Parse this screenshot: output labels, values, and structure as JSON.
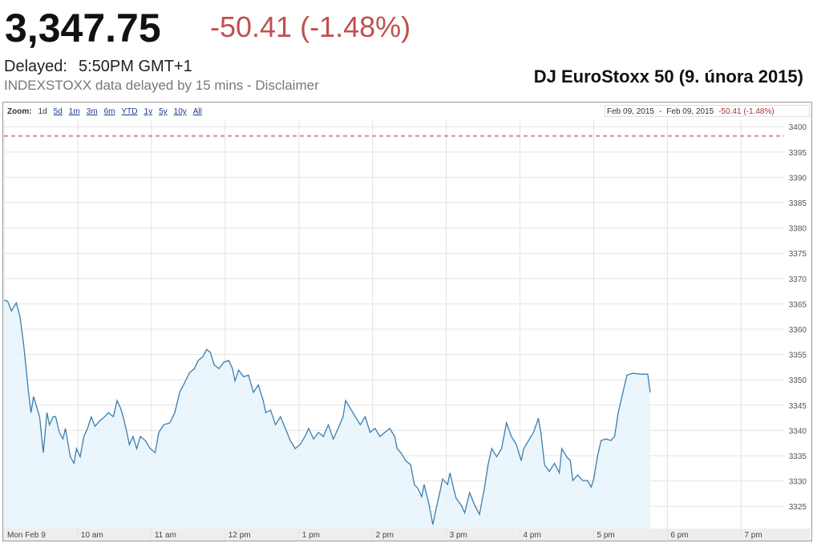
{
  "header": {
    "price": "3,347.75",
    "change": "-50.41 (-1.48%)",
    "delayed_label": "Delayed:",
    "time": "5:50PM GMT+1",
    "source": "INDEXSTOXX data delayed by 15 mins - Disclaimer"
  },
  "chart_data": {
    "type": "line",
    "title": "DJ EuroStoxx 50 (9. února 2015)",
    "zoom_label": "Zoom:",
    "zoom_options": [
      "1d",
      "5d",
      "1m",
      "3m",
      "6m",
      "YTD",
      "1y",
      "5y",
      "10y",
      "All"
    ],
    "range_start": "Feb 09, 2015",
    "range_separator": "-",
    "range_end": "Feb 09, 2015",
    "range_change": "-50.41 (-1.48%)",
    "x": [
      0,
      3,
      6,
      10,
      13,
      16,
      20,
      22,
      24,
      27,
      29,
      32,
      35,
      37,
      40,
      42,
      45,
      48,
      50,
      54,
      57,
      59,
      62,
      65,
      68,
      71,
      74,
      78,
      82,
      85,
      89,
      92,
      95,
      97,
      100,
      102,
      105,
      108,
      111,
      115,
      119,
      123,
      126,
      130,
      135,
      139,
      143,
      147,
      151,
      155,
      158,
      162,
      165,
      168,
      171,
      175,
      179,
      183,
      186,
      188,
      191,
      195,
      199,
      203,
      207,
      211,
      213,
      217,
      221,
      225,
      229,
      233,
      237,
      241,
      245,
      248,
      252,
      256,
      260,
      264,
      268,
      272,
      276,
      278,
      282,
      286,
      290,
      294,
      298,
      302,
      306,
      310,
      314,
      318,
      320,
      323,
      327,
      331,
      334,
      337,
      340,
      342,
      346,
      349,
      351,
      354,
      357,
      361,
      363,
      366,
      368,
      372,
      375,
      379,
      383,
      387,
      391,
      394,
      397,
      401,
      405,
      409,
      413,
      417,
      421,
      423,
      427,
      431,
      435,
      437,
      440,
      444,
      448,
      452,
      454,
      458,
      461,
      463,
      467,
      471,
      475,
      478,
      480,
      483,
      486,
      490,
      494,
      497,
      500,
      503,
      507,
      512,
      518,
      524,
      526
    ],
    "series": [
      {
        "color": "#3a7fae",
        "values": [
          3365.7,
          3365.5,
          3363.6,
          3365.2,
          3362.5,
          3357,
          3347.5,
          3343.5,
          3346.7,
          3344.3,
          3342.7,
          3335.6,
          3343.5,
          3341.1,
          3342.7,
          3342.7,
          3339.6,
          3338.3,
          3340.4,
          3334.8,
          3333.5,
          3336.4,
          3334.8,
          3338.8,
          3340.4,
          3342.7,
          3340.8,
          3341.9,
          3342.7,
          3343.5,
          3342.7,
          3345.9,
          3344.3,
          3342.7,
          3339.6,
          3337.2,
          3338.8,
          3336.4,
          3338.8,
          3338,
          3336.4,
          3335.6,
          3339.6,
          3341.1,
          3341.5,
          3343.5,
          3347.5,
          3349.4,
          3351.4,
          3352.2,
          3353.8,
          3354.6,
          3356,
          3355.4,
          3353,
          3352.2,
          3353.5,
          3353.8,
          3352.2,
          3349.8,
          3351.9,
          3350.6,
          3350.9,
          3347.5,
          3349,
          3345.9,
          3343.5,
          3344,
          3341.1,
          3342.7,
          3340.4,
          3338,
          3336.4,
          3337.2,
          3338.8,
          3340.4,
          3338.3,
          3339.6,
          3338.8,
          3341.1,
          3338.3,
          3340.4,
          3342.7,
          3345.9,
          3344.3,
          3342.7,
          3341.1,
          3342.7,
          3339.6,
          3340.4,
          3338.8,
          3339.6,
          3340.4,
          3338.8,
          3336.4,
          3335.6,
          3334,
          3333.2,
          3329.3,
          3328.5,
          3326.9,
          3329.3,
          3325.3,
          3321.4,
          3323.7,
          3326.9,
          3330.4,
          3329.3,
          3331.6,
          3328.5,
          3326.6,
          3325.3,
          3323.7,
          3327.7,
          3325.3,
          3323.4,
          3328.5,
          3333.2,
          3336.4,
          3334.8,
          3336.4,
          3341.5,
          3338.8,
          3337.2,
          3334,
          3336.4,
          3338,
          3339.6,
          3342.4,
          3339.6,
          3333.2,
          3331.9,
          3333.5,
          3331.6,
          3336.4,
          3334.8,
          3334,
          3330.1,
          3331.2,
          3330.1,
          3330.1,
          3328.8,
          3330.4,
          3334.8,
          3338,
          3338.3,
          3338,
          3338.8,
          3343.5,
          3346.7,
          3350.9,
          3351.3,
          3351.1,
          3351.1,
          3347.5
        ]
      }
    ],
    "previous_close": 3398.16,
    "previous_close_color": "#a83232",
    "xlim": [
      0,
      635
    ],
    "xticks": [
      {
        "value": 0,
        "label": "Mon Feb 9"
      },
      {
        "value": 60,
        "label": "10 am"
      },
      {
        "value": 120,
        "label": "11 am"
      },
      {
        "value": 180,
        "label": "12 pm"
      },
      {
        "value": 240,
        "label": "1 pm"
      },
      {
        "value": 300,
        "label": "2 pm"
      },
      {
        "value": 360,
        "label": "3 pm"
      },
      {
        "value": 420,
        "label": "4 pm"
      },
      {
        "value": 480,
        "label": "5 pm"
      },
      {
        "value": 540,
        "label": "6 pm"
      },
      {
        "value": 600,
        "label": "7 pm"
      }
    ],
    "ylim": [
      3320.6,
      3401.3
    ],
    "yticks": [
      3325,
      3330,
      3335,
      3340,
      3345,
      3350,
      3355,
      3360,
      3365,
      3370,
      3375,
      3380,
      3385,
      3390,
      3395,
      3400
    ],
    "grid": true
  }
}
